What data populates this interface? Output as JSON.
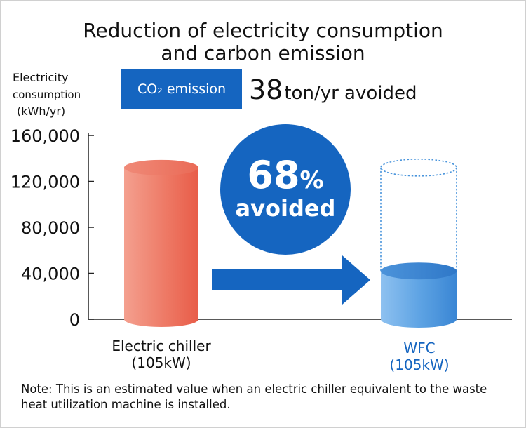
{
  "chart_data": {
    "type": "bar",
    "title": "Reduction of electricity consumption and carbon emission",
    "title_lines": [
      "Reduction of electricity consumption",
      "and carbon emission"
    ],
    "ylabel_lines": [
      "Electricity",
      "consumption",
      "(kWh/yr)"
    ],
    "ylim": [
      0,
      160000
    ],
    "yticks": [
      0,
      40000,
      80000,
      120000,
      160000
    ],
    "ytick_labels": [
      "0",
      "40,000",
      "80,000",
      "120,000",
      "160,000"
    ],
    "categories": [
      "Electric chiller",
      "WFC"
    ],
    "category_sublabels": [
      "(105kW)",
      "(105kW)"
    ],
    "values": [
      132000,
      42000
    ],
    "reference_outline_value": 132000,
    "grid": false,
    "legend": "none"
  },
  "callout": {
    "percent_number": "68",
    "percent_sign": "%",
    "avoided_text": "avoided"
  },
  "co2": {
    "tag": "CO₂ emission",
    "value": "38",
    "unit": "ton/yr avoided"
  },
  "note": "Note: This is an estimated value when an electric chiller equivalent to the waste heat utilization machine is installed.",
  "colors": {
    "accent_blue": "#1565c0",
    "chiller_red": "#ec6a58",
    "wfc_blue": "#4a95dc",
    "wfc_label": "#1565c0"
  }
}
